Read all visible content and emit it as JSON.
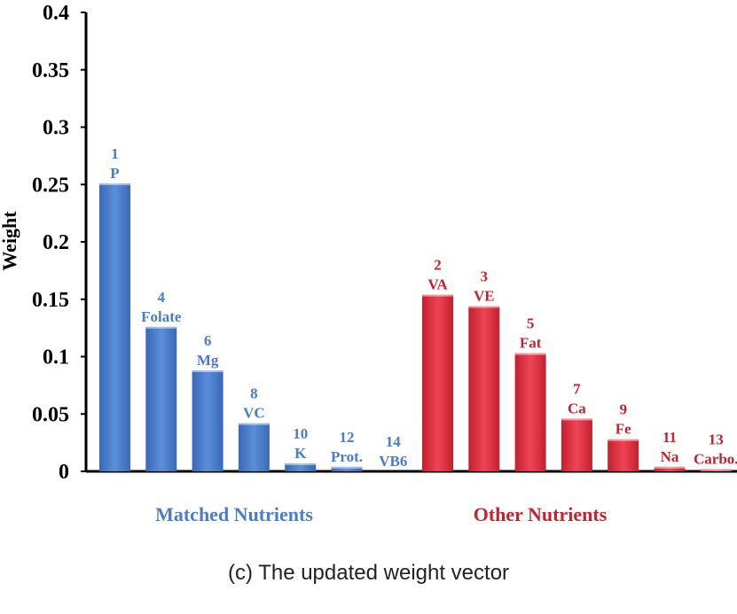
{
  "caption": "(c) The updated weight vector",
  "chart_data": {
    "type": "bar",
    "title": "",
    "xlabel": "",
    "ylabel": "Weight",
    "ylim": [
      0,
      0.4
    ],
    "yticks": [
      "0",
      "0.05",
      "0.1",
      "0.15",
      "0.2",
      "0.25",
      "0.3",
      "0.35",
      "0.4"
    ],
    "grid": false,
    "groups": [
      {
        "name": "Matched Nutrients",
        "color": "#4a7cc9",
        "label_color": "#4a7cc9",
        "bars": [
          {
            "index": "1",
            "name": "P",
            "value": 0.251
          },
          {
            "index": "4",
            "name": "Folate",
            "value": 0.126
          },
          {
            "index": "6",
            "name": "Mg",
            "value": 0.088
          },
          {
            "index": "8",
            "name": "VC",
            "value": 0.042
          },
          {
            "index": "10",
            "name": "K",
            "value": 0.007
          },
          {
            "index": "12",
            "name": "Prot.",
            "value": 0.004
          },
          {
            "index": "14",
            "name": "VB6",
            "value": 0.0
          }
        ]
      },
      {
        "name": "Other Nutrients",
        "color": "#e03040",
        "label_color": "#c0242e",
        "bars": [
          {
            "index": "2",
            "name": "VA",
            "value": 0.154
          },
          {
            "index": "3",
            "name": "VE",
            "value": 0.144
          },
          {
            "index": "5",
            "name": "Fat",
            "value": 0.103
          },
          {
            "index": "7",
            "name": "Ca",
            "value": 0.046
          },
          {
            "index": "9",
            "name": "Fe",
            "value": 0.028
          },
          {
            "index": "11",
            "name": "Na",
            "value": 0.004
          },
          {
            "index": "13",
            "name": "Carbo.",
            "value": 0.002
          }
        ]
      }
    ]
  }
}
